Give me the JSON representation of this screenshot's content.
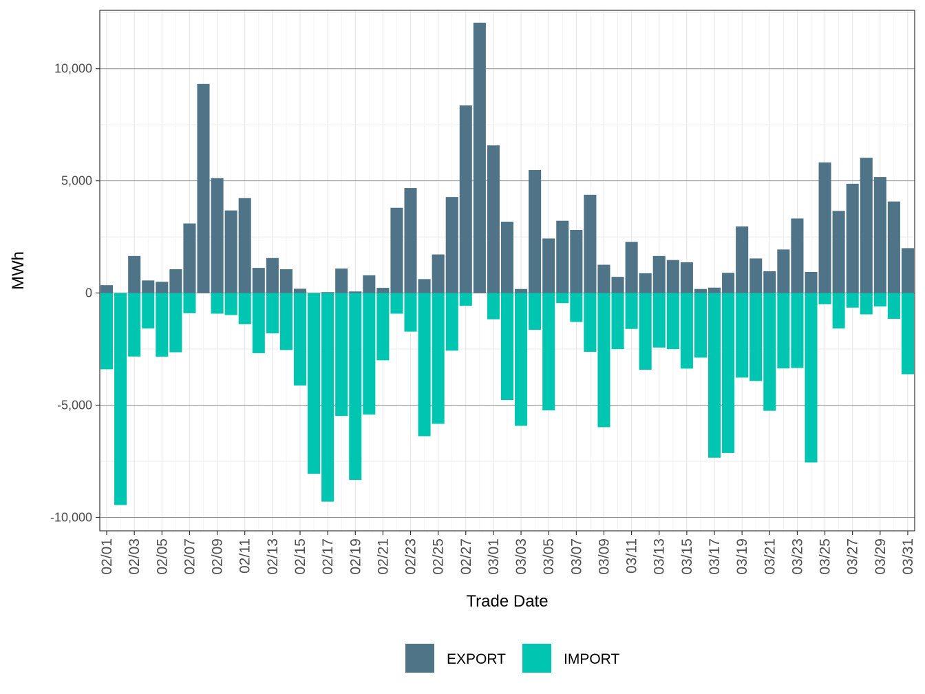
{
  "chart_data": {
    "type": "bar",
    "stacked": true,
    "xlabel": "Trade Date",
    "ylabel": "MWh",
    "ylim": [
      -10600,
      12600
    ],
    "y_ticks": [
      {
        "value": -10000,
        "label": "-10,000"
      },
      {
        "value": -5000,
        "label": "-5,000"
      },
      {
        "value": 0,
        "label": "0"
      },
      {
        "value": 5000,
        "label": "5,000"
      },
      {
        "value": 10000,
        "label": "10,000"
      }
    ],
    "grid": true,
    "legend_position": "bottom",
    "categories": [
      "02/01",
      "02/02",
      "02/03",
      "02/04",
      "02/05",
      "02/06",
      "02/07",
      "02/08",
      "02/09",
      "02/10",
      "02/11",
      "02/12",
      "02/13",
      "02/14",
      "02/15",
      "02/16",
      "02/17",
      "02/18",
      "02/19",
      "02/20",
      "02/21",
      "02/22",
      "02/23",
      "02/24",
      "02/25",
      "02/26",
      "02/27",
      "02/28",
      "03/01",
      "03/02",
      "03/03",
      "03/04",
      "03/05",
      "03/06",
      "03/07",
      "03/08",
      "03/09",
      "03/10",
      "03/11",
      "03/12",
      "03/13",
      "03/14",
      "03/15",
      "03/16",
      "03/17",
      "03/18",
      "03/19",
      "03/20",
      "03/21",
      "03/22",
      "03/23",
      "03/24",
      "03/25",
      "03/26",
      "03/27",
      "03/28",
      "03/29",
      "03/30",
      "03/31"
    ],
    "x_tick_labels": [
      "02/01",
      "02/03",
      "02/05",
      "02/07",
      "02/09",
      "02/11",
      "02/13",
      "02/15",
      "02/17",
      "02/19",
      "02/21",
      "02/23",
      "02/25",
      "02/27",
      "03/01",
      "03/03",
      "03/05",
      "03/07",
      "03/09",
      "03/11",
      "03/13",
      "03/15",
      "03/17",
      "03/19",
      "03/21",
      "03/23",
      "03/25",
      "03/27",
      "03/29",
      "03/31"
    ],
    "series": [
      {
        "name": "EXPORT",
        "color": "#4f7387",
        "values": [
          350,
          0,
          1650,
          560,
          500,
          1060,
          3100,
          9320,
          5120,
          3680,
          4230,
          1120,
          1560,
          1060,
          190,
          0,
          40,
          1090,
          70,
          790,
          230,
          3800,
          4680,
          620,
          1720,
          4280,
          8360,
          12050,
          6580,
          3180,
          180,
          5480,
          2430,
          3220,
          2810,
          4380,
          1260,
          720,
          2280,
          880,
          1650,
          1470,
          1370,
          180,
          240,
          900,
          2970,
          1540,
          970,
          1940,
          3320,
          940,
          5820,
          3660,
          4870,
          6030,
          5170,
          4080,
          2000
        ]
      },
      {
        "name": "IMPORT",
        "color": "#00c5b0",
        "values": [
          -3400,
          -9450,
          -2830,
          -1580,
          -2840,
          -2640,
          -900,
          0,
          -920,
          -980,
          -1390,
          -2680,
          -1800,
          -2540,
          -4120,
          -8060,
          -9300,
          -5480,
          -8330,
          -5420,
          -3000,
          -920,
          -1720,
          -6380,
          -5830,
          -2570,
          -570,
          0,
          -1170,
          -4770,
          -5920,
          -1640,
          -5230,
          -450,
          -1290,
          -2620,
          -5980,
          -2500,
          -1600,
          -3420,
          -2430,
          -2500,
          -3370,
          -2880,
          -7340,
          -7130,
          -3770,
          -3920,
          -5250,
          -3360,
          -3340,
          -7550,
          -500,
          -1580,
          -650,
          -950,
          -600,
          -1150,
          -3620
        ]
      }
    ]
  }
}
